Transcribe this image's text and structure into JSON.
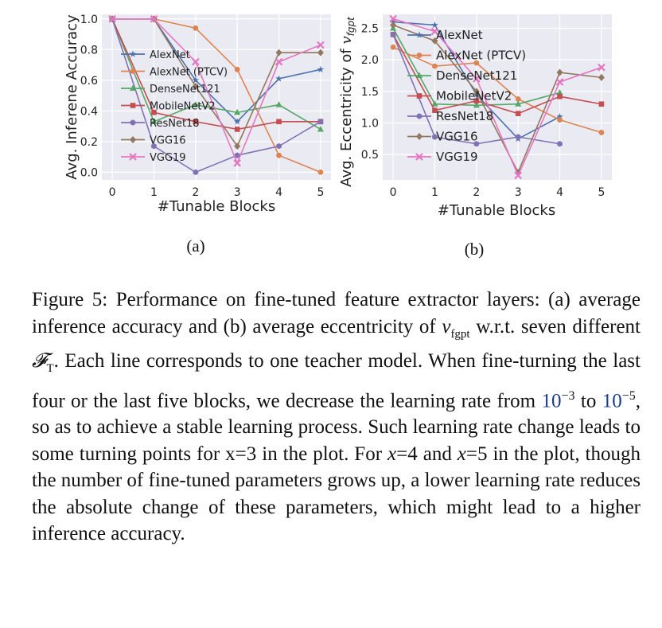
{
  "chart_data": [
    {
      "id": "a",
      "type": "line",
      "panel_label": "(a)",
      "xlabel": "#Tunable Blocks",
      "ylabel": "Avg. Inferene Accuracy",
      "x": [
        0,
        1,
        2,
        3,
        4,
        5
      ],
      "xlim": [
        -0.25,
        5.25
      ],
      "ylim": [
        -0.05,
        1.03
      ],
      "xticks": [
        "0",
        "1",
        "2",
        "3",
        "4",
        "5"
      ],
      "yticks": [
        0.0,
        0.2,
        0.4,
        0.6,
        0.8,
        1.0
      ],
      "ytick_labels": [
        "0.0",
        "0.2",
        "0.4",
        "0.6",
        "0.8",
        "1.0"
      ],
      "grid": true,
      "legend_position": "center-left",
      "series": [
        {
          "name": "AlexNet",
          "color": "#4c72b0",
          "marker": "star",
          "values": [
            1.0,
            1.0,
            0.6,
            0.33,
            0.61,
            0.67
          ]
        },
        {
          "name": "AlexNet (PTCV)",
          "color": "#dd8452",
          "marker": "circle",
          "values": [
            1.0,
            1.0,
            0.94,
            0.67,
            0.11,
            0.0
          ]
        },
        {
          "name": "DenseNet121",
          "color": "#55a868",
          "marker": "triangle",
          "values": [
            1.0,
            0.33,
            0.44,
            0.39,
            0.44,
            0.28
          ]
        },
        {
          "name": "MobileNetV2",
          "color": "#c44e52",
          "marker": "square",
          "values": [
            1.0,
            0.39,
            0.33,
            0.28,
            0.33,
            0.33
          ]
        },
        {
          "name": "ResNet18",
          "color": "#8172b3",
          "marker": "hexagon",
          "values": [
            1.0,
            0.17,
            0.0,
            0.11,
            0.17,
            0.33
          ]
        },
        {
          "name": "VGG16",
          "color": "#937860",
          "marker": "diamond",
          "values": [
            1.0,
            1.0,
            0.56,
            0.17,
            0.78,
            0.78
          ]
        },
        {
          "name": "VGG19",
          "color": "#e377c2",
          "marker": "x",
          "values": [
            1.0,
            1.0,
            0.72,
            0.06,
            0.72,
            0.83
          ]
        }
      ]
    },
    {
      "id": "b",
      "type": "line",
      "panel_label": "(b)",
      "xlabel": "#Tunable Blocks",
      "ylabel": "Avg. Eccentricity of v_fgpt",
      "ylabel_text": "Avg. Eccentricity of ",
      "ylabel_symbol": "v",
      "ylabel_subscript": "fgpt",
      "x": [
        0,
        1,
        2,
        3,
        4,
        5
      ],
      "xlim": [
        -0.25,
        5.25
      ],
      "ylim": [
        0.1,
        2.72
      ],
      "xticks": [
        "0",
        "1",
        "2",
        "3",
        "4",
        "5"
      ],
      "yticks": [
        0.5,
        1.0,
        1.5,
        2.0,
        2.5
      ],
      "ytick_labels": [
        "0.5",
        "1.0",
        "1.5",
        "2.0",
        "2.5"
      ],
      "grid": true,
      "legend_position": "right",
      "series": [
        {
          "name": "AlexNet",
          "color": "#4c72b0",
          "marker": "star",
          "values": [
            2.6,
            2.55,
            1.45,
            0.75,
            1.1,
            null
          ]
        },
        {
          "name": "AlexNet (PTCV)",
          "color": "#dd8452",
          "marker": "circle",
          "values": [
            2.2,
            1.9,
            1.95,
            1.38,
            1.05,
            0.85
          ]
        },
        {
          "name": "DenseNet121",
          "color": "#55a868",
          "marker": "triangle",
          "values": [
            2.5,
            1.3,
            1.28,
            1.3,
            1.48,
            null
          ]
        },
        {
          "name": "MobileNetV2",
          "color": "#c44e52",
          "marker": "square",
          "values": [
            2.4,
            1.2,
            1.35,
            1.15,
            1.42,
            1.3
          ]
        },
        {
          "name": "ResNet18",
          "color": "#8172b3",
          "marker": "hexagon",
          "values": [
            2.4,
            0.78,
            0.67,
            0.78,
            0.67,
            null
          ]
        },
        {
          "name": "VGG16",
          "color": "#937860",
          "marker": "diamond",
          "values": [
            2.55,
            2.3,
            1.5,
            0.22,
            1.8,
            1.72
          ]
        },
        {
          "name": "VGG19",
          "color": "#e377c2",
          "marker": "x",
          "values": [
            2.65,
            2.45,
            1.7,
            0.17,
            1.65,
            1.88
          ]
        }
      ]
    }
  ],
  "caption": {
    "label": "Figure 5:",
    "t1": " Performance on fine-tuned feature extractor layers: (a) average inference accuracy and (b) average eccentricity of ",
    "v_sym": "v",
    "v_sub": "fgpt",
    "t2": " w.r.t. seven different ",
    "f_sym": "𝓕",
    "f_sub": "T",
    "t3": ". Each line corresponds to one teacher model. When fine-turning the last four or the last five blocks, we decrease the learning rate from ",
    "lr1_base": "10",
    "lr1_exp": "−3",
    "t4": " to ",
    "lr2_base": "10",
    "lr2_exp": "−5",
    "t5": ", so as to achieve a stable learning process. Such learning rate change leads to some turning points for x=3 in the plot. For ",
    "x_var1": "x",
    "t6": "=4 and ",
    "x_var2": "x",
    "t7": "=5 in the plot, though the number of fine-tuned parameters grows up, a lower learning rate reduces the absolute change of these parameters, which might lead to a higher inference accuracy."
  }
}
